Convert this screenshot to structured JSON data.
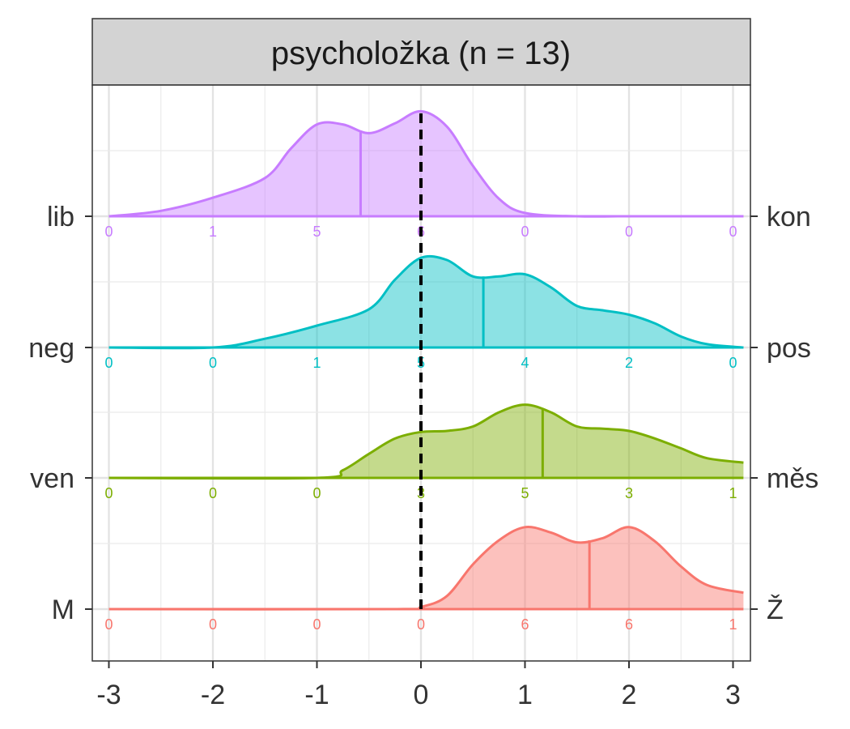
{
  "chart_data": {
    "type": "ridgeline",
    "facet_title": "psycholožka (n = 13)",
    "x_ticks": [
      "-3",
      "-2",
      "-1",
      "0",
      "1",
      "2",
      "3"
    ],
    "xlim": [
      -3.1,
      3.1
    ],
    "grid": true,
    "reference_line_x": 0,
    "rows": [
      {
        "left_label": "lib",
        "right_label": "kon",
        "color": "#C77CFF",
        "mean": -0.58,
        "counts": [
          "0",
          "1",
          "5",
          "6",
          "0",
          "0",
          "0"
        ],
        "density": [
          [
            -3,
            0.0
          ],
          [
            -2.5,
            0.05
          ],
          [
            -2,
            0.17
          ],
          [
            -1.5,
            0.35
          ],
          [
            -1.25,
            0.62
          ],
          [
            -1,
            0.84
          ],
          [
            -0.75,
            0.84
          ],
          [
            -0.5,
            0.76
          ],
          [
            -0.25,
            0.85
          ],
          [
            0,
            0.96
          ],
          [
            0.25,
            0.82
          ],
          [
            0.5,
            0.46
          ],
          [
            0.75,
            0.16
          ],
          [
            1,
            0.03
          ],
          [
            1.5,
            0.0
          ],
          [
            2,
            0.0
          ],
          [
            3.1,
            0.0
          ]
        ]
      },
      {
        "left_label": "neg",
        "right_label": "pos",
        "color": "#00BFC4",
        "mean": 0.6,
        "counts": [
          "0",
          "0",
          "1",
          "5",
          "4",
          "2",
          "0"
        ],
        "density": [
          [
            -3,
            0.0
          ],
          [
            -2,
            0.0
          ],
          [
            -1.5,
            0.08
          ],
          [
            -1,
            0.2
          ],
          [
            -0.5,
            0.35
          ],
          [
            -0.25,
            0.62
          ],
          [
            0,
            0.82
          ],
          [
            0.25,
            0.8
          ],
          [
            0.5,
            0.65
          ],
          [
            0.75,
            0.65
          ],
          [
            1,
            0.67
          ],
          [
            1.25,
            0.55
          ],
          [
            1.5,
            0.38
          ],
          [
            1.75,
            0.34
          ],
          [
            2,
            0.3
          ],
          [
            2.25,
            0.22
          ],
          [
            2.5,
            0.1
          ],
          [
            2.75,
            0.03
          ],
          [
            3.1,
            0.0
          ]
        ]
      },
      {
        "left_label": "ven",
        "right_label": "měs",
        "color": "#7CAE00",
        "mean": 1.17,
        "counts": [
          "0",
          "0",
          "0",
          "3",
          "5",
          "3",
          "1"
        ],
        "density": [
          [
            -3,
            0.0
          ],
          [
            -1,
            0.0
          ],
          [
            -0.75,
            0.07
          ],
          [
            -0.5,
            0.22
          ],
          [
            -0.25,
            0.36
          ],
          [
            0,
            0.42
          ],
          [
            0.25,
            0.43
          ],
          [
            0.5,
            0.47
          ],
          [
            0.75,
            0.6
          ],
          [
            1,
            0.67
          ],
          [
            1.25,
            0.6
          ],
          [
            1.5,
            0.47
          ],
          [
            1.75,
            0.45
          ],
          [
            2,
            0.43
          ],
          [
            2.25,
            0.36
          ],
          [
            2.5,
            0.27
          ],
          [
            2.75,
            0.18
          ],
          [
            3.1,
            0.14
          ]
        ]
      },
      {
        "left_label": "M",
        "right_label": "Ž",
        "color": "#F8766D",
        "mean": 1.62,
        "counts": [
          "0",
          "0",
          "0",
          "0",
          "6",
          "6",
          "1"
        ],
        "density": [
          [
            -3,
            0.0
          ],
          [
            -0.25,
            0.0
          ],
          [
            0,
            0.02
          ],
          [
            0.25,
            0.12
          ],
          [
            0.5,
            0.41
          ],
          [
            0.75,
            0.63
          ],
          [
            1,
            0.75
          ],
          [
            1.25,
            0.7
          ],
          [
            1.5,
            0.61
          ],
          [
            1.75,
            0.65
          ],
          [
            2,
            0.75
          ],
          [
            2.25,
            0.62
          ],
          [
            2.5,
            0.39
          ],
          [
            2.75,
            0.22
          ],
          [
            3.1,
            0.15
          ]
        ]
      }
    ]
  }
}
